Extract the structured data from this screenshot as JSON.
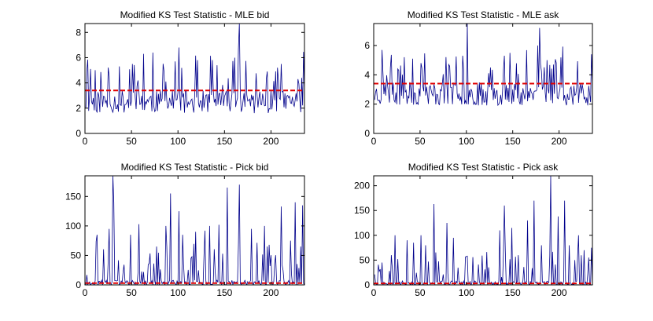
{
  "figure": {
    "colors": {
      "series": "#00008b",
      "threshold": "#e00000",
      "axes": "#000000",
      "background": "#ffffff"
    }
  },
  "chart_data": [
    {
      "type": "line",
      "title": "Modified KS Test Statistic - MLE bid",
      "xlim": [
        0,
        236
      ],
      "ylim": [
        0,
        8.7
      ],
      "xticks": [
        0,
        50,
        100,
        150,
        200
      ],
      "yticks": [
        0,
        2,
        4,
        6,
        8
      ],
      "threshold": 3.4,
      "series": [
        {
          "name": "MLE bid",
          "kind": "noise",
          "n": 236,
          "baseline": 2.5,
          "amp": 0.9,
          "spike_prob": 0.12,
          "spike_min": 1.5,
          "spike_max": 3.2,
          "floor": 1.3,
          "seed": 11,
          "peaks": [
            [
              5,
              5.1
            ],
            [
              50,
              5.5
            ],
            [
              62,
              6.3
            ],
            [
              72,
              6.4
            ],
            [
              96,
              5.7
            ],
            [
              100,
              6.8
            ],
            [
              120,
              5.8
            ],
            [
              141,
              5.4
            ],
            [
              160,
              6.0
            ],
            [
              164,
              6.7
            ],
            [
              165,
              8.7
            ],
            [
              206,
              5.2
            ],
            [
              210,
              5.5
            ],
            [
              228,
              4.3
            ],
            [
              232,
              4.4
            ]
          ]
        }
      ],
      "xlabel": "",
      "ylabel": ""
    },
    {
      "type": "line",
      "title": "Modified KS Test Statistic - MLE ask",
      "xlim": [
        0,
        236
      ],
      "ylim": [
        0,
        7.5
      ],
      "xticks": [
        0,
        50,
        100,
        150,
        200
      ],
      "yticks": [
        0,
        2,
        4,
        6
      ],
      "threshold": 3.4,
      "series": [
        {
          "name": "MLE ask",
          "kind": "noise",
          "n": 236,
          "baseline": 2.7,
          "amp": 0.8,
          "spike_prob": 0.12,
          "spike_min": 1.2,
          "spike_max": 2.6,
          "floor": 1.4,
          "seed": 23,
          "peaks": [
            [
              8,
              5.7
            ],
            [
              32,
              5.2
            ],
            [
              41,
              5.1
            ],
            [
              50,
              4.8
            ],
            [
              80,
              4.7
            ],
            [
              95,
              5.3
            ],
            [
              100,
              7.5
            ],
            [
              140,
              5.3
            ],
            [
              146,
              5.5
            ],
            [
              176,
              6.0
            ],
            [
              178,
              7.2
            ],
            [
              186,
              5.0
            ],
            [
              193,
              4.7
            ],
            [
              234,
              5.4
            ]
          ]
        }
      ],
      "xlabel": "",
      "ylabel": ""
    },
    {
      "type": "line",
      "title": "Modified KS Test Statistic - Pick bid",
      "xlim": [
        0,
        236
      ],
      "ylim": [
        0,
        185
      ],
      "xticks": [
        0,
        50,
        100,
        150,
        200
      ],
      "yticks": [
        0,
        50,
        100,
        150
      ],
      "threshold": 3,
      "series": [
        {
          "name": "Pick bid",
          "kind": "spiky",
          "n": 236,
          "baseline": 3,
          "amp": 5,
          "spike_prob": 0.16,
          "spike_min": 15,
          "spike_max": 70,
          "floor": 0,
          "seed": 37,
          "peaks": [
            [
              12,
              85
            ],
            [
              25,
              95
            ],
            [
              29,
              185
            ],
            [
              30,
              140
            ],
            [
              48,
              85
            ],
            [
              57,
              103
            ],
            [
              76,
              65
            ],
            [
              86,
              100
            ],
            [
              91,
              155
            ],
            [
              100,
              125
            ],
            [
              104,
              85
            ],
            [
              118,
              90
            ],
            [
              128,
              92
            ],
            [
              133,
              100
            ],
            [
              143,
              102
            ],
            [
              152,
              165
            ],
            [
              165,
              170
            ],
            [
              178,
              95
            ],
            [
              192,
              100
            ],
            [
              210,
              133
            ],
            [
              220,
              75
            ],
            [
              225,
              140
            ],
            [
              233,
              135
            ]
          ]
        }
      ],
      "xlabel": "",
      "ylabel": ""
    },
    {
      "type": "line",
      "title": "Modified KS Test Statistic - Pick ask",
      "xlim": [
        0,
        236
      ],
      "ylim": [
        0,
        220
      ],
      "xticks": [
        0,
        50,
        100,
        150,
        200
      ],
      "yticks": [
        0,
        50,
        100,
        150,
        200
      ],
      "threshold": 3,
      "series": [
        {
          "name": "Pick ask",
          "kind": "spiky",
          "n": 236,
          "baseline": 3,
          "amp": 5,
          "spike_prob": 0.15,
          "spike_min": 15,
          "spike_max": 65,
          "floor": 0,
          "seed": 53,
          "peaks": [
            [
              8,
              45
            ],
            [
              18,
              60
            ],
            [
              22,
              100
            ],
            [
              35,
              90
            ],
            [
              42,
              85
            ],
            [
              50,
              100
            ],
            [
              55,
              80
            ],
            [
              64,
              163
            ],
            [
              78,
              125
            ],
            [
              85,
              95
            ],
            [
              100,
              58
            ],
            [
              135,
              110
            ],
            [
              140,
              160
            ],
            [
              148,
              115
            ],
            [
              155,
              60
            ],
            [
              165,
              130
            ],
            [
              172,
              170
            ],
            [
              180,
              80
            ],
            [
              190,
              220
            ],
            [
              198,
              138
            ],
            [
              205,
              170
            ],
            [
              210,
              80
            ],
            [
              220,
              100
            ],
            [
              226,
              70
            ],
            [
              234,
              75
            ]
          ]
        }
      ],
      "xlabel": "",
      "ylabel": ""
    }
  ]
}
